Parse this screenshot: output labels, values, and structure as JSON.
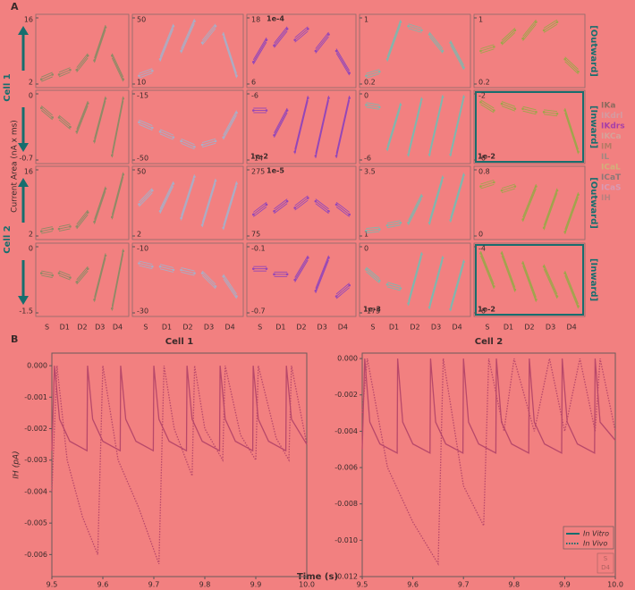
{
  "panel_a": {
    "label": "A",
    "y_label": "Current Area (nA x ms)",
    "cell_labels": [
      "Cell 1",
      "Cell 2"
    ],
    "direction_labels": [
      "[Outward]",
      "[Inward]",
      "[Outward]",
      "[Inward]"
    ],
    "categories": [
      "S",
      "D1",
      "D2",
      "D3",
      "D4"
    ],
    "column_colors": [
      "#8f8a66",
      "#a9aec6",
      "#9446b8",
      "#7fb7ae",
      "#9da64a"
    ],
    "legend": [
      {
        "name": "IKa",
        "color": "#8c6a5e"
      },
      {
        "name": "IKdrl",
        "color": "#d59aa0"
      },
      {
        "name": "IKdrs",
        "color": "#a73fa8"
      },
      {
        "name": "IKCa",
        "color": "#d6a29a"
      },
      {
        "name": "IM",
        "color": "#b57a66"
      },
      {
        "name": "IL",
        "color": "#a08880"
      },
      {
        "name": "ICaL",
        "color": "#d2b07a"
      },
      {
        "name": "ICaT",
        "color": "#8e7878"
      },
      {
        "name": "ICaS",
        "color": "#d99ab4"
      },
      {
        "name": "IH",
        "color": "#b9807e"
      }
    ],
    "panels": [
      {
        "ylim": [
          2,
          16
        ],
        "yticks": [
          2,
          16
        ],
        "start": [
          3,
          4,
          5,
          7,
          8
        ],
        "end": [
          4,
          5,
          8,
          14,
          3
        ]
      },
      {
        "ylim": [
          10,
          50
        ],
        "yticks": [
          10,
          50
        ],
        "start": [
          15,
          25,
          30,
          35,
          40
        ],
        "end": [
          18,
          45,
          48,
          45,
          15
        ]
      },
      {
        "ylim": [
          6,
          18
        ],
        "yticks": [
          6,
          18
        ],
        "scale_label": "1e-4",
        "start": [
          10,
          13,
          14,
          12,
          12
        ],
        "end": [
          14,
          16,
          16,
          15,
          8
        ]
      },
      {
        "ylim": [
          0.2,
          1
        ],
        "yticks": [
          0.2,
          1
        ],
        "start": [
          0.3,
          0.5,
          0.9,
          0.8,
          0.7
        ],
        "end": [
          0.35,
          0.95,
          0.85,
          0.6,
          0.4
        ]
      },
      {
        "ylim": [
          0.2,
          1
        ],
        "yticks": [
          0.2,
          1
        ],
        "start": [
          0.6,
          0.7,
          0.75,
          0.85,
          0.5
        ],
        "end": [
          0.65,
          0.85,
          0.95,
          0.95,
          0.35
        ]
      },
      {
        "ylim": [
          -0.7,
          0
        ],
        "yticks": [
          -0.7,
          0
        ],
        "start": [
          -0.15,
          -0.25,
          -0.4,
          -0.5,
          -0.65
        ],
        "end": [
          -0.25,
          -0.35,
          -0.1,
          -0.05,
          -0.05
        ]
      },
      {
        "ylim": [
          -50,
          -15
        ],
        "yticks": [
          -50,
          -15
        ],
        "start": [
          -30,
          -35,
          -40,
          -42,
          -38
        ],
        "end": [
          -33,
          -38,
          -43,
          -40,
          -25
        ]
      },
      {
        "ylim": [
          -14,
          -6
        ],
        "yticks": [
          -14,
          -6
        ],
        "scale_label": "1e-2",
        "start": [
          -8,
          -11,
          -13,
          -13.5,
          -13.5
        ],
        "end": [
          -8,
          -8,
          -6.5,
          -6.5,
          -6.5
        ]
      },
      {
        "ylim": [
          -6,
          0
        ],
        "yticks": [
          -6,
          0
        ],
        "start": [
          -1,
          -5,
          -5.5,
          -5.5,
          -5.5
        ],
        "end": [
          -1.2,
          -1,
          -0.5,
          -0.3,
          -0.3
        ]
      },
      {
        "ylim": [
          -6,
          -2
        ],
        "yticks": [
          -6,
          -2
        ],
        "scale_label": "1e-2",
        "start": [
          -2.5,
          -2.6,
          -2.9,
          -3.1,
          -3
        ],
        "end": [
          -3,
          -2.9,
          -3.1,
          -3.2,
          -5.5
        ]
      },
      {
        "ylim": [
          2,
          16
        ],
        "yticks": [
          2,
          16
        ],
        "start": [
          3,
          3.5,
          4,
          5,
          6
        ],
        "end": [
          3.5,
          4,
          7,
          12,
          15
        ]
      },
      {
        "ylim": [
          2,
          50
        ],
        "yticks": [
          2,
          50
        ],
        "start": [
          25,
          20,
          15,
          10,
          8
        ],
        "end": [
          35,
          40,
          45,
          42,
          40
        ]
      },
      {
        "ylim": [
          75,
          275
        ],
        "yticks": [
          75,
          275
        ],
        "scale_label": "1e-5",
        "start": [
          140,
          150,
          160,
          180,
          170
        ],
        "end": [
          170,
          180,
          190,
          150,
          140
        ]
      },
      {
        "ylim": [
          1,
          3.5
        ],
        "yticks": [
          1,
          3.5
        ],
        "start": [
          1.2,
          1.4,
          1.5,
          1.5,
          1.6
        ],
        "end": [
          1.25,
          1.5,
          2.5,
          3.2,
          3.3
        ]
      },
      {
        "ylim": [
          0,
          0.8
        ],
        "yticks": [
          0,
          0.8
        ],
        "start": [
          0.6,
          0.55,
          0.2,
          0.1,
          0.05
        ],
        "end": [
          0.65,
          0.6,
          0.6,
          0.55,
          0.5
        ]
      },
      {
        "ylim": [
          -1.5,
          0
        ],
        "yticks": [
          -1.5,
          0
        ],
        "start": [
          -0.6,
          -0.6,
          -0.8,
          -1.2,
          -1.4
        ],
        "end": [
          -0.65,
          -0.7,
          -0.5,
          -0.2,
          -0.1
        ]
      },
      {
        "ylim": [
          -30,
          -10
        ],
        "yticks": [
          -30,
          -10
        ],
        "start": [
          -15,
          -16,
          -17,
          -18,
          -19
        ],
        "end": [
          -16,
          -17,
          -18,
          -22,
          -25
        ]
      },
      {
        "ylim": [
          -0.7,
          -0.1
        ],
        "yticks": [
          -0.7,
          -0.1
        ],
        "start": [
          -0.3,
          -0.35,
          -0.4,
          -0.5,
          -0.55
        ],
        "end": [
          -0.3,
          -0.35,
          -0.2,
          -0.2,
          -0.45
        ]
      },
      {
        "ylim": [
          -175,
          0
        ],
        "yticks": [
          -175,
          0
        ],
        "scale_label": "1e-3",
        "start": [
          -60,
          -100,
          -150,
          -160,
          -165
        ],
        "end": [
          -90,
          -110,
          -20,
          -30,
          -40
        ]
      },
      {
        "ylim": [
          -6,
          -4
        ],
        "yticks": [
          -6,
          -4
        ],
        "scale_label": "1e-2",
        "start": [
          -4.2,
          -4.2,
          -4.5,
          -4.6,
          -4.8
        ],
        "end": [
          -5.2,
          -5.3,
          -5.6,
          -5.5,
          -5.8
        ]
      }
    ]
  },
  "panel_b": {
    "label": "B",
    "xlabel": "Time (s)",
    "condition_legend": [
      "S",
      "D4"
    ]
  },
  "chart_data": [
    {
      "type": "line",
      "title": "Cell 1",
      "ylabel": "IH (pA)",
      "xlim": [
        9.5,
        10
      ],
      "ylim": [
        -0.0067,
        0.0004
      ],
      "xticks": [
        9.5,
        9.6,
        9.7,
        9.8,
        9.9,
        {
          "value": 10,
          "label": "10.0"
        }
      ],
      "yticks": [
        {
          "value": 0,
          "label": "0.000"
        },
        {
          "value": -0.001,
          "label": "-0.001"
        },
        {
          "value": -0.002,
          "label": "-0.002"
        },
        {
          "value": -0.003,
          "label": "-0.003"
        },
        {
          "value": -0.004,
          "label": "-0.004"
        },
        {
          "value": -0.005,
          "label": "-0.005"
        },
        {
          "value": -0.006,
          "label": "-0.006"
        }
      ],
      "series": [
        {
          "color": "#b8486a",
          "style": "solid",
          "x": [
            9.5,
            9.505,
            9.515,
            9.535,
            9.569,
            9.57,
            9.58,
            9.6,
            9.634,
            9.635,
            9.645,
            9.665,
            9.699,
            9.7,
            9.71,
            9.73,
            9.764,
            9.765,
            9.775,
            9.795,
            9.829,
            9.83,
            9.84,
            9.86,
            9.894,
            9.895,
            9.905,
            9.925,
            9.959,
            9.96,
            9.97,
            10
          ],
          "values": [
            -0.0027,
            0,
            -0.0017,
            -0.0024,
            -0.0027,
            0,
            -0.0017,
            -0.0024,
            -0.0027,
            0,
            -0.0017,
            -0.0024,
            -0.0027,
            0,
            -0.0017,
            -0.0024,
            -0.0027,
            0,
            -0.0017,
            -0.0024,
            -0.0027,
            0,
            -0.0017,
            -0.0024,
            -0.0027,
            0,
            -0.0017,
            -0.0024,
            -0.0027,
            0,
            -0.0017,
            -0.0025
          ]
        },
        {
          "color": "#b8486a",
          "style": "dotted",
          "x": [
            9.5,
            9.51,
            9.53,
            9.56,
            9.59,
            9.6,
            9.63,
            9.67,
            9.71,
            9.72,
            9.74,
            9.775,
            9.78,
            9.8,
            9.835,
            9.84,
            9.87,
            9.9,
            9.905,
            9.94,
            9.965,
            9.97,
            10
          ],
          "values": [
            -0.004,
            0,
            -0.003,
            -0.0048,
            -0.006,
            0,
            -0.003,
            -0.0045,
            -0.0063,
            0,
            -0.002,
            -0.0035,
            0,
            -0.002,
            -0.003,
            0,
            -0.0022,
            -0.003,
            0,
            -0.0023,
            -0.003,
            0,
            -0.0025
          ]
        }
      ]
    },
    {
      "type": "line",
      "title": "Cell 2",
      "xlim": [
        9.5,
        10
      ],
      "ylim": [
        -0.012,
        0.0003
      ],
      "xticks": [
        9.5,
        9.6,
        9.7,
        9.8,
        9.9,
        {
          "value": 10,
          "label": "10.0"
        }
      ],
      "yticks": [
        {
          "value": 0,
          "label": "0.000"
        },
        {
          "value": -0.002,
          "label": "-0.002"
        },
        {
          "value": -0.004,
          "label": "-0.004"
        },
        {
          "value": -0.006,
          "label": "-0.006"
        },
        {
          "value": -0.008,
          "label": "-0.008"
        },
        {
          "value": -0.01,
          "label": "-0.010"
        },
        {
          "value": -0.012,
          "label": "-0.012"
        }
      ],
      "series": [
        {
          "name": "In Vitro",
          "color": "#b8486a",
          "style": "solid",
          "x": [
            9.5,
            9.505,
            9.515,
            9.535,
            9.569,
            9.57,
            9.58,
            9.6,
            9.634,
            9.635,
            9.645,
            9.665,
            9.699,
            9.7,
            9.71,
            9.73,
            9.764,
            9.765,
            9.775,
            9.795,
            9.829,
            9.83,
            9.84,
            9.86,
            9.894,
            9.895,
            9.905,
            9.925,
            9.959,
            9.96,
            9.97,
            10
          ],
          "values": [
            -0.005,
            0,
            -0.0035,
            -0.0047,
            -0.0052,
            0,
            -0.0035,
            -0.0047,
            -0.0052,
            0,
            -0.0035,
            -0.0047,
            -0.0052,
            0,
            -0.0035,
            -0.0047,
            -0.0052,
            0,
            -0.0035,
            -0.0047,
            -0.0052,
            0,
            -0.0035,
            -0.0047,
            -0.0052,
            0,
            -0.0035,
            -0.0047,
            -0.0052,
            0,
            -0.0035,
            -0.0045
          ]
        },
        {
          "name": "In Vivo",
          "color": "#b8486a",
          "style": "dotted",
          "x": [
            9.5,
            9.51,
            9.55,
            9.6,
            9.65,
            9.66,
            9.7,
            9.74,
            9.75,
            9.78,
            9.8,
            9.84,
            9.87,
            9.9,
            9.93,
            9.96,
            9.97,
            10
          ],
          "values": [
            -0.003,
            0,
            -0.006,
            -0.009,
            -0.0113,
            0,
            -0.007,
            -0.0092,
            0,
            -0.004,
            0,
            -0.004,
            0,
            -0.004,
            0,
            -0.004,
            0,
            -0.004
          ]
        }
      ]
    }
  ]
}
